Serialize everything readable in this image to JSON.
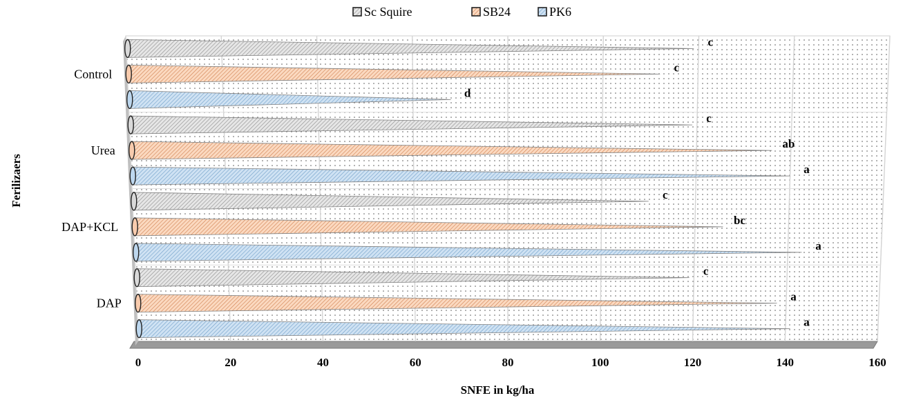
{
  "chart_data": {
    "type": "bar",
    "orientation": "horizontal",
    "style": "3d-cone",
    "title": "",
    "xlabel": "SNFE in kg/ha",
    "ylabel": "Ferilizaers",
    "xlim": [
      0,
      160
    ],
    "xticks": [
      0,
      20,
      40,
      60,
      80,
      100,
      120,
      140,
      160
    ],
    "grid": true,
    "legend_position": "top",
    "categories": [
      "Control",
      "Urea",
      "DAP+KCL",
      "DAP"
    ],
    "series": [
      {
        "name": "Sc Squire",
        "color": "#d9d9d9",
        "values": [
          119,
          119,
          110,
          119
        ],
        "letters": [
          "c",
          "c",
          "c",
          "c"
        ]
      },
      {
        "name": "SB24",
        "color": "#f8cbad",
        "values": [
          112,
          136,
          126,
          138
        ],
        "letters": [
          "c",
          "ab",
          "bc",
          "a"
        ]
      },
      {
        "name": "PK6",
        "color": "#bdd7ee",
        "values": [
          68,
          140,
          143,
          141
        ],
        "letters": [
          "d",
          "a",
          "a",
          "a"
        ]
      }
    ]
  }
}
